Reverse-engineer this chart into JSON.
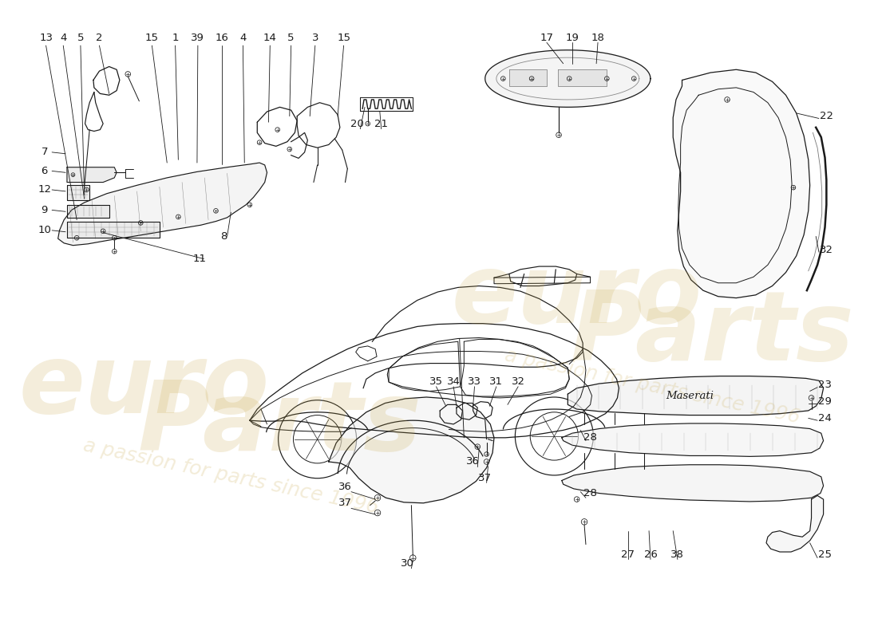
{
  "bg_color": "#ffffff",
  "line_color": "#1a1a1a",
  "wm_color1": "#c8a84b",
  "wm_color2": "#c8a84b",
  "fs_label": 9.5,
  "lw_main": 0.85,
  "lw_thin": 0.55,
  "lw_leader": 0.6,
  "top_labels_left": [
    [
      "13",
      24,
      26
    ],
    [
      "4",
      47,
      26
    ],
    [
      "5",
      70,
      26
    ],
    [
      "2",
      95,
      26
    ],
    [
      "15",
      165,
      26
    ],
    [
      "1",
      196,
      26
    ],
    [
      "39",
      226,
      26
    ],
    [
      "16",
      258,
      26
    ],
    [
      "4",
      286,
      26
    ],
    [
      "14",
      322,
      26
    ],
    [
      "5",
      350,
      26
    ],
    [
      "3",
      382,
      26
    ],
    [
      "15",
      420,
      26
    ]
  ],
  "left_labels": [
    [
      "7",
      22,
      178
    ],
    [
      "6",
      22,
      203
    ],
    [
      "12",
      22,
      228
    ],
    [
      "9",
      22,
      255
    ],
    [
      "10",
      22,
      282
    ]
  ],
  "mid_labels": [
    [
      "8",
      260,
      290
    ],
    [
      "11",
      228,
      320
    ]
  ],
  "top_center_labels": [
    [
      "20",
      438,
      140
    ],
    [
      "21",
      470,
      140
    ]
  ],
  "top_right_labels": [
    [
      "17",
      690,
      26
    ],
    [
      "19",
      724,
      26
    ],
    [
      "18",
      758,
      26
    ]
  ],
  "right_labels": [
    [
      "22",
      1062,
      130
    ],
    [
      "32",
      1062,
      308
    ]
  ],
  "bot_center_labels": [
    [
      "35",
      543,
      483
    ],
    [
      "34",
      566,
      483
    ],
    [
      "33",
      594,
      483
    ],
    [
      "31",
      623,
      483
    ],
    [
      "32",
      652,
      483
    ]
  ],
  "bot_left_labels": [
    [
      "36",
      422,
      623
    ],
    [
      "37",
      422,
      645
    ],
    [
      "30",
      505,
      725
    ]
  ],
  "bot_inner_labels": [
    [
      "36",
      592,
      590
    ],
    [
      "37",
      608,
      612
    ]
  ],
  "bot_right_labels": [
    [
      "23",
      1060,
      488
    ],
    [
      "29",
      1060,
      510
    ],
    [
      "24",
      1060,
      532
    ],
    [
      "28",
      748,
      558
    ],
    [
      "28",
      748,
      632
    ],
    [
      "27",
      798,
      714
    ],
    [
      "26",
      828,
      714
    ],
    [
      "38",
      864,
      714
    ],
    [
      "25",
      1060,
      714
    ]
  ]
}
